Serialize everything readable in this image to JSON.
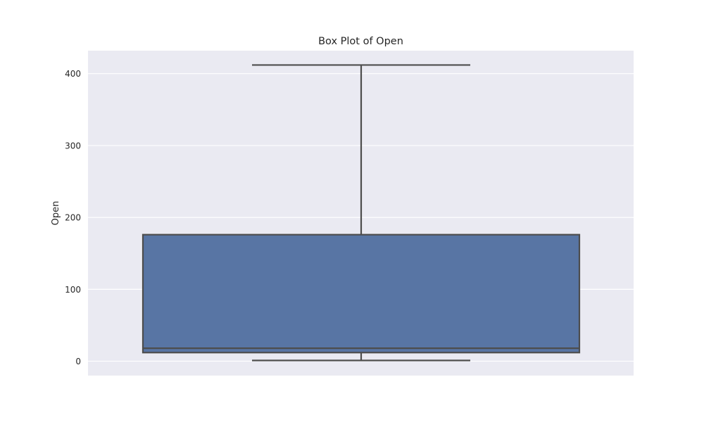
{
  "chart_data": {
    "type": "box",
    "title": "Box Plot of Open",
    "xlabel": "",
    "ylabel": "Open",
    "ylim": [
      -20,
      432
    ],
    "yticks": [
      0,
      100,
      200,
      300,
      400
    ],
    "ytick_labels": [
      "0",
      "100",
      "200",
      "300",
      "400"
    ],
    "grid": true,
    "box": {
      "whisker_low": 1,
      "q1": 12,
      "median": 18,
      "q3": 176,
      "whisker_high": 412
    },
    "colors": {
      "background": "#EAEAF2",
      "box_fill": "#5875A4",
      "line": "#4D4D4D",
      "grid": "#FFFFFF"
    }
  }
}
